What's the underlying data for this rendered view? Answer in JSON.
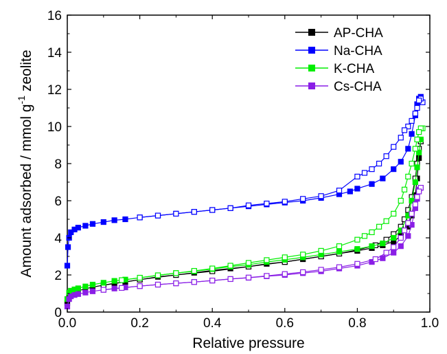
{
  "chart_data": {
    "type": "line",
    "title": "",
    "xlabel": "Relative pressure",
    "ylabel_main": "Amount adsorbed / mmol g",
    "ylabel_sup": "-1",
    "ylabel_tail": " zeolite",
    "xlim": [
      0.0,
      1.0
    ],
    "ylim": [
      0,
      16
    ],
    "xticks": [
      0.0,
      0.2,
      0.4,
      0.6,
      0.8,
      1.0
    ],
    "xtick_labels": [
      "0.0",
      "0.2",
      "0.4",
      "0.6",
      "0.8",
      "1.0"
    ],
    "yticks": [
      0,
      2,
      4,
      6,
      8,
      10,
      12,
      14,
      16
    ],
    "ytick_labels": [
      "0",
      "2",
      "4",
      "6",
      "8",
      "10",
      "12",
      "14",
      "16"
    ],
    "grid": false,
    "legend_position": "top-right",
    "marker": "square; filled = adsorption, open = desorption",
    "series": [
      {
        "name": "AP-CHA",
        "color": "#000000",
        "adsorption": {
          "x": [
            0.0,
            0.005,
            0.01,
            0.02,
            0.03,
            0.05,
            0.07,
            0.1,
            0.13,
            0.16,
            0.2,
            0.25,
            0.3,
            0.35,
            0.4,
            0.45,
            0.5,
            0.55,
            0.6,
            0.65,
            0.7,
            0.75,
            0.8,
            0.84,
            0.87,
            0.9,
            0.92,
            0.94,
            0.95,
            0.96,
            0.965,
            0.97,
            0.975
          ],
          "y": [
            0.5,
            0.85,
            1.0,
            1.1,
            1.15,
            1.25,
            1.35,
            1.45,
            1.55,
            1.62,
            1.75,
            1.9,
            2.0,
            2.12,
            2.25,
            2.35,
            2.45,
            2.6,
            2.7,
            2.85,
            3.0,
            3.15,
            3.3,
            3.45,
            3.6,
            3.8,
            4.1,
            4.6,
            5.2,
            6.3,
            7.2,
            8.3,
            9.2
          ]
        },
        "desorption": {
          "x": [
            0.975,
            0.97,
            0.965,
            0.96,
            0.95,
            0.94,
            0.93,
            0.92,
            0.9,
            0.88,
            0.85,
            0.8,
            0.75,
            0.7,
            0.6,
            0.5,
            0.4,
            0.3,
            0.2,
            0.1
          ],
          "y": [
            9.2,
            8.8,
            8.0,
            7.2,
            6.2,
            5.5,
            5.0,
            4.6,
            4.2,
            3.9,
            3.6,
            3.35,
            3.15,
            3.0,
            2.7,
            2.45,
            2.2,
            2.0,
            1.75,
            1.45
          ]
        }
      },
      {
        "name": "Na-CHA",
        "color": "#0000ff",
        "adsorption": {
          "x": [
            0.0,
            0.002,
            0.005,
            0.01,
            0.02,
            0.03,
            0.05,
            0.07,
            0.1,
            0.13,
            0.16,
            0.2,
            0.25,
            0.3,
            0.35,
            0.4,
            0.45,
            0.5,
            0.55,
            0.6,
            0.65,
            0.7,
            0.75,
            0.78,
            0.8,
            0.84,
            0.87,
            0.9,
            0.92,
            0.94,
            0.95,
            0.96,
            0.965,
            0.97,
            0.975,
            0.98
          ],
          "y": [
            2.5,
            3.5,
            4.0,
            4.3,
            4.45,
            4.55,
            4.65,
            4.75,
            4.85,
            4.95,
            5.0,
            5.1,
            5.2,
            5.3,
            5.4,
            5.5,
            5.6,
            5.7,
            5.8,
            5.9,
            6.0,
            6.15,
            6.35,
            6.5,
            6.65,
            6.9,
            7.2,
            7.7,
            8.1,
            8.8,
            9.6,
            10.6,
            11.2,
            11.5,
            11.6,
            11.3
          ]
        },
        "desorption": {
          "x": [
            0.98,
            0.975,
            0.97,
            0.965,
            0.96,
            0.95,
            0.94,
            0.93,
            0.92,
            0.9,
            0.88,
            0.86,
            0.84,
            0.82,
            0.8,
            0.75,
            0.7,
            0.65,
            0.6,
            0.55,
            0.5,
            0.45,
            0.4,
            0.35,
            0.3,
            0.25,
            0.2
          ],
          "y": [
            11.3,
            11.5,
            11.4,
            11.0,
            10.7,
            10.3,
            10.0,
            9.8,
            9.4,
            8.9,
            8.4,
            8.0,
            7.7,
            7.5,
            7.3,
            6.55,
            6.25,
            6.1,
            5.95,
            5.85,
            5.75,
            5.6,
            5.5,
            5.4,
            5.3,
            5.2,
            5.1
          ]
        }
      },
      {
        "name": "K-CHA",
        "color": "#00ee00",
        "adsorption": {
          "x": [
            0.0,
            0.005,
            0.01,
            0.02,
            0.03,
            0.05,
            0.07,
            0.1,
            0.13,
            0.16,
            0.2,
            0.25,
            0.3,
            0.35,
            0.4,
            0.45,
            0.5,
            0.55,
            0.6,
            0.65,
            0.7,
            0.75,
            0.8,
            0.84,
            0.87,
            0.9,
            0.92,
            0.94,
            0.95,
            0.96,
            0.965,
            0.97,
            0.975
          ],
          "y": [
            0.7,
            1.05,
            1.15,
            1.22,
            1.28,
            1.38,
            1.48,
            1.58,
            1.68,
            1.75,
            1.85,
            1.98,
            2.1,
            2.2,
            2.32,
            2.45,
            2.55,
            2.7,
            2.82,
            2.95,
            3.1,
            3.25,
            3.4,
            3.55,
            3.7,
            4.0,
            4.4,
            5.2,
            6.0,
            7.0,
            7.8,
            8.6,
            9.3
          ]
        },
        "desorption": {
          "x": [
            0.98,
            0.975,
            0.97,
            0.965,
            0.96,
            0.95,
            0.94,
            0.93,
            0.92,
            0.9,
            0.88,
            0.86,
            0.84,
            0.82,
            0.8,
            0.75,
            0.7,
            0.65,
            0.6,
            0.55,
            0.5,
            0.45,
            0.4,
            0.35,
            0.3,
            0.25,
            0.2,
            0.15
          ],
          "y": [
            9.9,
            9.9,
            9.7,
            9.3,
            8.8,
            8.0,
            7.3,
            6.6,
            6.0,
            5.3,
            4.9,
            4.6,
            4.3,
            4.1,
            3.9,
            3.55,
            3.3,
            3.1,
            2.95,
            2.8,
            2.65,
            2.5,
            2.35,
            2.22,
            2.1,
            1.98,
            1.85,
            1.72
          ]
        }
      },
      {
        "name": "Cs-CHA",
        "color": "#8a1ee6",
        "adsorption": {
          "x": [
            0.0,
            0.005,
            0.01,
            0.02,
            0.03,
            0.05,
            0.07,
            0.1,
            0.13,
            0.16,
            0.2,
            0.25,
            0.3,
            0.35,
            0.4,
            0.45,
            0.5,
            0.55,
            0.6,
            0.65,
            0.7,
            0.75,
            0.8,
            0.84,
            0.87,
            0.9,
            0.92,
            0.94,
            0.95,
            0.96,
            0.965,
            0.97,
            0.975
          ],
          "y": [
            0.3,
            0.7,
            0.85,
            0.92,
            0.97,
            1.05,
            1.12,
            1.2,
            1.27,
            1.33,
            1.4,
            1.48,
            1.55,
            1.62,
            1.7,
            1.78,
            1.85,
            1.93,
            2.0,
            2.1,
            2.2,
            2.35,
            2.5,
            2.7,
            2.9,
            3.2,
            3.55,
            4.1,
            4.7,
            5.6,
            6.1,
            6.6,
            6.7
          ]
        },
        "desorption": {
          "x": [
            0.975,
            0.97,
            0.965,
            0.96,
            0.95,
            0.94,
            0.93,
            0.92,
            0.9,
            0.88,
            0.85,
            0.8,
            0.75,
            0.7,
            0.65,
            0.6,
            0.55,
            0.5,
            0.45,
            0.4,
            0.35,
            0.3,
            0.25,
            0.2,
            0.15,
            0.1
          ],
          "y": [
            6.7,
            6.5,
            6.2,
            5.8,
            5.3,
            4.8,
            4.4,
            4.0,
            3.5,
            3.2,
            2.85,
            2.6,
            2.42,
            2.28,
            2.15,
            2.05,
            1.95,
            1.86,
            1.78,
            1.7,
            1.62,
            1.55,
            1.48,
            1.4,
            1.3,
            1.2
          ]
        }
      }
    ]
  }
}
